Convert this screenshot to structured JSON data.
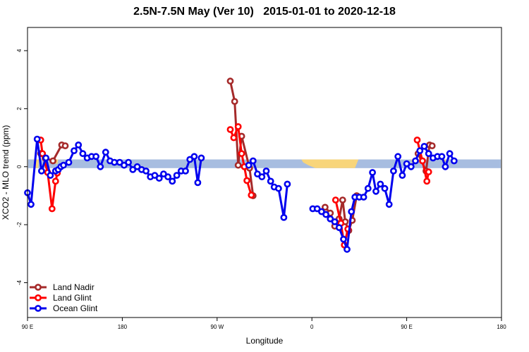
{
  "chart_data": {
    "type": "line",
    "title": "2.5N-7.5N May (Ver 10)   2015-01-01 to 2020-12-18",
    "xlabel": "Longitude",
    "ylabel": "XCO2 - MLO trend (ppm)",
    "xlim": [
      -90,
      180
    ],
    "ylim": [
      -5.2,
      4.8
    ],
    "grid": false,
    "legend_position": "bottom-left",
    "x_ticks": [
      {
        "value": -90,
        "label": "90 E"
      },
      {
        "value": -36,
        "label": "180"
      },
      {
        "value": 18,
        "label": "90 W"
      },
      {
        "value": 72,
        "label": "0"
      },
      {
        "value": 126,
        "label": "90 E"
      },
      {
        "value": 180,
        "label": "180"
      }
    ],
    "y_ticks": [
      {
        "value": -4,
        "label": "-4"
      },
      {
        "value": -2,
        "label": "-2"
      },
      {
        "value": 0,
        "label": "0"
      },
      {
        "value": 2,
        "label": "2"
      },
      {
        "value": 4,
        "label": "4"
      }
    ],
    "series": [
      {
        "name": "Land Nadir",
        "color": "#a52a2a",
        "segments": [
          [
            [
              -82.5,
              0.45
            ],
            [
              -80,
              0.3
            ],
            [
              -75.5,
              0.2
            ],
            [
              -70.5,
              0.75
            ],
            [
              -68.5,
              0.72
            ]
          ],
          [
            [
              25.5,
              2.95
            ],
            [
              28,
              2.25
            ],
            [
              30,
              0.05
            ],
            [
              32,
              1.05
            ],
            [
              36.5,
              -0.05
            ],
            [
              38.5,
              -1.0
            ]
          ],
          [
            [
              79.5,
              -1.4
            ],
            [
              82.5,
              -1.6
            ],
            [
              85,
              -2.05
            ],
            [
              87.5,
              -1.8
            ],
            [
              89.5,
              -1.15
            ],
            [
              91,
              -1.9
            ],
            [
              93,
              -2.2
            ],
            [
              95,
              -1.85
            ],
            [
              97.5,
              -1.0
            ]
          ],
          [
            [
              132.5,
              0.45
            ],
            [
              137,
              -0.15
            ],
            [
              139,
              0.75
            ],
            [
              140.5,
              0.72
            ]
          ]
        ]
      },
      {
        "name": "Land Glint",
        "color": "#ff0000",
        "segments": [
          [
            [
              -82.5,
              0.92
            ],
            [
              -81.5,
              0.45
            ],
            [
              -78.5,
              -0.2
            ],
            [
              -76,
              -1.45
            ],
            [
              -74,
              -0.5
            ],
            [
              -73,
              -0.22
            ]
          ],
          [
            [
              25.5,
              1.28
            ],
            [
              27.5,
              1.0
            ],
            [
              30,
              1.38
            ],
            [
              32,
              0.45
            ],
            [
              33.5,
              0.0
            ],
            [
              35,
              -0.48
            ],
            [
              37.5,
              -0.98
            ]
          ],
          [
            [
              85.5,
              -1.15
            ],
            [
              88.5,
              -1.95
            ],
            [
              90.5,
              -2.7
            ],
            [
              92.5,
              -2.15
            ]
          ],
          [
            [
              132,
              0.92
            ],
            [
              135,
              0.2
            ],
            [
              137.5,
              -0.5
            ],
            [
              138.5,
              -0.18
            ]
          ]
        ]
      },
      {
        "name": "Ocean Glint",
        "color": "#0000ee",
        "segments": [
          [
            [
              -90,
              -0.9
            ],
            [
              -88,
              -1.3
            ],
            [
              -84.5,
              0.95
            ],
            [
              -82,
              -0.15
            ],
            [
              -79.5,
              0.3
            ],
            [
              -77,
              -0.3
            ],
            [
              -74,
              -0.15
            ],
            [
              -72.5,
              -0.1
            ],
            [
              -71,
              0.0
            ],
            [
              -69.5,
              0.05
            ],
            [
              -66.5,
              0.15
            ],
            [
              -63.5,
              0.55
            ],
            [
              -61,
              0.75
            ],
            [
              -58.5,
              0.45
            ],
            [
              -56,
              0.3
            ],
            [
              -53.5,
              0.35
            ],
            [
              -51,
              0.35
            ],
            [
              -48.5,
              0.0
            ],
            [
              -45.5,
              0.5
            ],
            [
              -43,
              0.2
            ],
            [
              -40.5,
              0.15
            ],
            [
              -37.5,
              0.15
            ],
            [
              -35,
              0.05
            ],
            [
              -32.5,
              0.15
            ],
            [
              -30,
              -0.1
            ],
            [
              -27.5,
              0.0
            ],
            [
              -25,
              -0.1
            ],
            [
              -22.5,
              -0.15
            ],
            [
              -20,
              -0.35
            ],
            [
              -17.5,
              -0.3
            ],
            [
              -15,
              -0.4
            ],
            [
              -12.5,
              -0.25
            ],
            [
              -10,
              -0.35
            ],
            [
              -7.5,
              -0.5
            ],
            [
              -5,
              -0.3
            ],
            [
              -2.5,
              -0.15
            ],
            [
              0,
              -0.15
            ],
            [
              2.5,
              0.25
            ],
            [
              5,
              0.35
            ],
            [
              7,
              -0.55
            ],
            [
              9,
              0.3
            ]
          ],
          [
            [
              36,
              0.05
            ],
            [
              38.5,
              0.2
            ],
            [
              41,
              -0.25
            ],
            [
              43.5,
              -0.35
            ],
            [
              46,
              -0.15
            ],
            [
              48.5,
              -0.5
            ],
            [
              50.5,
              -0.7
            ],
            [
              53,
              -0.75
            ],
            [
              56,
              -1.75
            ],
            [
              58,
              -0.6
            ]
          ],
          [
            [
              72.5,
              -1.45
            ],
            [
              75,
              -1.45
            ],
            [
              77.5,
              -1.55
            ],
            [
              80,
              -1.65
            ],
            [
              82.5,
              -1.8
            ],
            [
              85,
              -1.9
            ],
            [
              87.5,
              -2.1
            ],
            [
              90,
              -2.5
            ],
            [
              92,
              -2.85
            ],
            [
              94.5,
              -1.55
            ],
            [
              96.5,
              -1.05
            ],
            [
              99,
              -1.05
            ],
            [
              101.5,
              -1.05
            ],
            [
              104,
              -0.75
            ],
            [
              106.5,
              -0.2
            ],
            [
              108.5,
              -0.85
            ],
            [
              111,
              -0.6
            ],
            [
              113.5,
              -0.75
            ],
            [
              116,
              -1.3
            ],
            [
              118.5,
              -0.15
            ],
            [
              121,
              0.35
            ],
            [
              123.5,
              -0.3
            ],
            [
              126,
              0.1
            ],
            [
              128.5,
              0.0
            ],
            [
              131,
              0.2
            ],
            [
              133.5,
              0.55
            ],
            [
              136,
              0.7
            ],
            [
              138.5,
              0.45
            ],
            [
              141,
              0.3
            ],
            [
              143.5,
              0.35
            ],
            [
              146,
              0.35
            ],
            [
              148,
              0.0
            ],
            [
              150.5,
              0.45
            ],
            [
              153,
              0.2
            ]
          ]
        ]
      }
    ]
  }
}
